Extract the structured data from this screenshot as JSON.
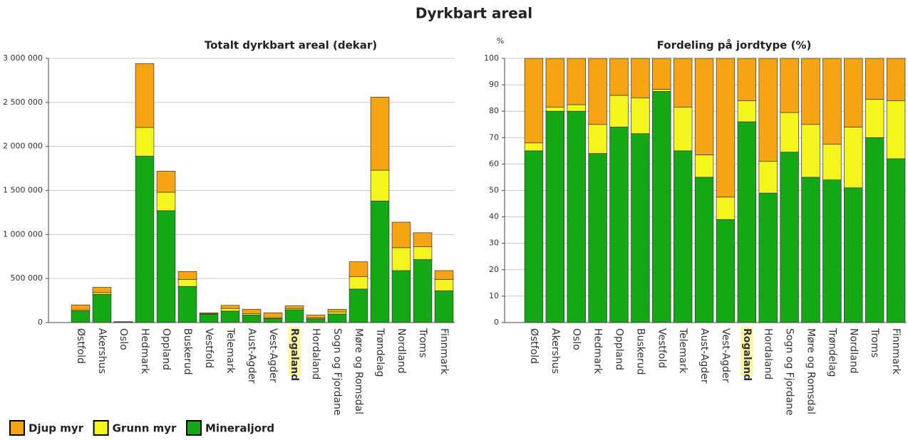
{
  "title": "Dyrkbart areal",
  "chart_data": [
    {
      "type": "stacked_bar",
      "title": "Totalt dyrkbart areal (dekar)",
      "categories": [
        "Østfold",
        "Akershus",
        "Oslo",
        "Hedmark",
        "Oppland",
        "Buskerud",
        "Vestfold",
        "Telemark",
        "Aust-Agder",
        "Vest-Agder",
        "Rogaland",
        "Hordaland",
        "Sogn og Fjordane",
        "Møre og Romsdal",
        "Trøndelag",
        "Nordland",
        "Troms",
        "Finnmark"
      ],
      "highlighted": "Rogaland",
      "highlight_color": "#fff7a8",
      "series": [
        {
          "name": "Mineraljord",
          "color": "#14a814",
          "values": [
            130000,
            320000,
            8000,
            1890000,
            1270000,
            410000,
            95000,
            130000,
            85000,
            45000,
            145000,
            42000,
            97000,
            380000,
            1380000,
            590000,
            715000,
            360000
          ]
        },
        {
          "name": "Grunn myr",
          "color": "#f5f51e",
          "values": [
            10000,
            20000,
            500,
            325000,
            210000,
            80000,
            5000,
            30000,
            15000,
            10000,
            15000,
            10000,
            23000,
            140000,
            350000,
            260000,
            145000,
            130000
          ]
        },
        {
          "name": "Djup myr",
          "color": "#f7a414",
          "values": [
            60000,
            60000,
            1500,
            725000,
            240000,
            90000,
            10000,
            35000,
            50000,
            55000,
            30000,
            33000,
            30000,
            170000,
            830000,
            290000,
            160000,
            100000
          ]
        }
      ],
      "ylim": [
        0,
        3000000
      ],
      "yticks": [
        0,
        {
          "value": 500000,
          "label": "500 000"
        },
        {
          "value": 1000000,
          "label": "1 000 000"
        },
        {
          "value": 1500000,
          "label": "1 500 000"
        },
        {
          "value": 2000000,
          "label": "2 000 000"
        },
        {
          "value": 2500000,
          "label": "2 500 000"
        },
        {
          "value": 3000000,
          "label": "3 000 000"
        }
      ],
      "grid": true
    },
    {
      "type": "stacked_bar",
      "title": "Fordeling på jordtype (%)",
      "y_unit_label": "%",
      "categories": [
        "Østfold",
        "Akershus",
        "Oslo",
        "Hedmark",
        "Oppland",
        "Buskerud",
        "Vestfold",
        "Telemark",
        "Aust-Agder",
        "Vest-Agder",
        "Rogaland",
        "Hordaland",
        "Sogn og Fjordane",
        "Møre og Romsdal",
        "Trøndelag",
        "Nordland",
        "Troms",
        "Finnmark"
      ],
      "highlighted": "Rogaland",
      "highlight_color": "#fff7a8",
      "series": [
        {
          "color": "#14a814",
          "values": [
            65,
            80,
            80,
            64,
            74,
            71.5,
            87.5,
            65,
            55,
            39,
            76,
            49,
            64.5,
            55,
            54,
            51,
            70,
            62
          ]
        },
        {
          "color": "#f5f51e",
          "values": [
            3,
            1.5,
            2.5,
            11,
            12,
            13.5,
            0.8,
            16.5,
            8.5,
            8.5,
            8,
            12,
            15,
            20,
            13.5,
            23,
            14.5,
            22
          ]
        },
        {
          "color": "#f7a414",
          "values": [
            32,
            18.5,
            17.5,
            25,
            14,
            15,
            11.7,
            18.5,
            36.5,
            52.5,
            16,
            39,
            20.5,
            25,
            32.5,
            26,
            15.5,
            16
          ]
        }
      ],
      "ylim": [
        0,
        100
      ],
      "yticks": [
        0,
        10,
        20,
        30,
        40,
        50,
        60,
        70,
        80,
        90,
        100
      ],
      "grid": true
    }
  ]
}
